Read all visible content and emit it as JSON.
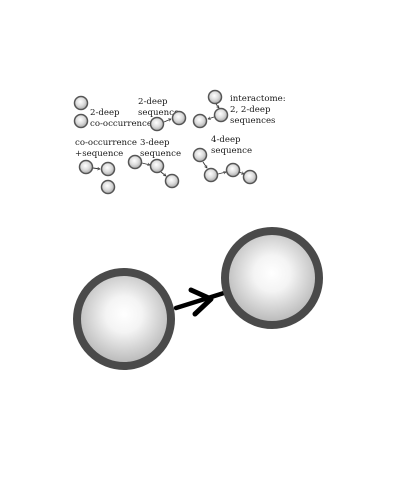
{
  "legend": {
    "two_deep_cooccurrence": {
      "line1": "2-deep",
      "line2": "co-occurrence"
    },
    "two_deep_sequence": {
      "line1": "2-deep",
      "line2": "sequence"
    },
    "interactome": {
      "line1": "interactome:",
      "line2": "2, 2-deep",
      "line3": "sequences"
    },
    "cooccurrence_sequence": {
      "line1": "co-occurrence",
      "line2": "+sequence"
    },
    "three_deep_sequence": {
      "line1": "3-deep",
      "line2": "sequence"
    },
    "four_deep_sequence": {
      "line1": "4-deep",
      "line2": "sequence"
    }
  },
  "colors": {
    "node_ring_large": "#4a4a4a",
    "node_ring_small": "#555555",
    "node_fill_center": "#ffffff",
    "node_fill_edge": "#b8b8b8",
    "arrow": "#000000"
  },
  "icons": {
    "node": "sphere-node-icon",
    "arrow": "right-arrow-icon"
  }
}
